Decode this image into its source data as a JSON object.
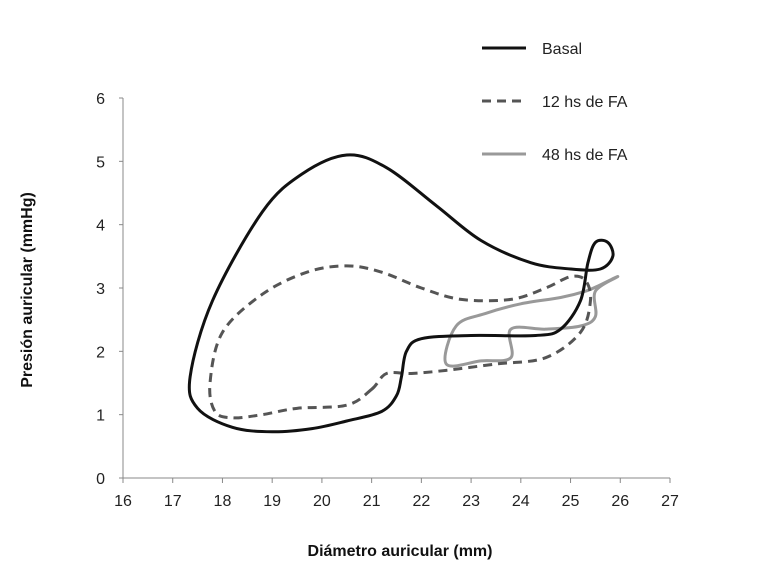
{
  "chart_data": {
    "type": "line",
    "xlabel": "Diámetro auricular (mm)",
    "ylabel": "Presión auricular (mmHg)",
    "xlim": [
      16,
      27
    ],
    "ylim": [
      0,
      6
    ],
    "x_ticks": [
      "16",
      "17",
      "18",
      "19",
      "20",
      "21",
      "22",
      "23",
      "24",
      "25",
      "26",
      "27"
    ],
    "y_ticks": [
      "0",
      "1",
      "2",
      "3",
      "4",
      "5",
      "6"
    ],
    "grid": false,
    "legend_position": "top-right",
    "series": [
      {
        "name": "Basal",
        "color": "#111111",
        "style": "solid",
        "points": [
          [
            21.5,
            1.3
          ],
          [
            21.2,
            1.05
          ],
          [
            20.5,
            0.9
          ],
          [
            19.8,
            0.78
          ],
          [
            19.0,
            0.73
          ],
          [
            18.2,
            0.8
          ],
          [
            17.5,
            1.1
          ],
          [
            17.35,
            1.6
          ],
          [
            17.8,
            2.8
          ],
          [
            18.8,
            4.2
          ],
          [
            19.6,
            4.8
          ],
          [
            20.5,
            5.1
          ],
          [
            21.3,
            4.9
          ],
          [
            22.3,
            4.3
          ],
          [
            23.2,
            3.75
          ],
          [
            24.2,
            3.4
          ],
          [
            25.0,
            3.3
          ],
          [
            25.6,
            3.3
          ],
          [
            25.85,
            3.5
          ],
          [
            25.75,
            3.72
          ],
          [
            25.5,
            3.72
          ],
          [
            25.35,
            3.4
          ],
          [
            25.2,
            2.8
          ],
          [
            24.8,
            2.35
          ],
          [
            24.3,
            2.25
          ],
          [
            23.0,
            2.25
          ],
          [
            22.0,
            2.2
          ],
          [
            21.7,
            2.0
          ],
          [
            21.6,
            1.6
          ],
          [
            21.5,
            1.3
          ]
        ]
      },
      {
        "name": "12 hs de FA",
        "color": "#555555",
        "style": "dashed",
        "points": [
          [
            21.0,
            1.4
          ],
          [
            20.5,
            1.15
          ],
          [
            19.5,
            1.1
          ],
          [
            18.8,
            1.0
          ],
          [
            18.2,
            0.95
          ],
          [
            17.85,
            1.05
          ],
          [
            17.75,
            1.5
          ],
          [
            18.0,
            2.3
          ],
          [
            18.8,
            2.9
          ],
          [
            19.7,
            3.25
          ],
          [
            20.5,
            3.35
          ],
          [
            21.2,
            3.25
          ],
          [
            22.0,
            3.0
          ],
          [
            22.8,
            2.82
          ],
          [
            23.8,
            2.82
          ],
          [
            24.5,
            3.0
          ],
          [
            25.0,
            3.18
          ],
          [
            25.3,
            3.12
          ],
          [
            25.4,
            2.8
          ],
          [
            25.2,
            2.3
          ],
          [
            24.5,
            1.9
          ],
          [
            23.5,
            1.8
          ],
          [
            22.5,
            1.7
          ],
          [
            21.8,
            1.65
          ],
          [
            21.3,
            1.65
          ],
          [
            21.0,
            1.4
          ]
        ]
      },
      {
        "name": "48 hs de FA",
        "color": "#999999",
        "style": "solid",
        "points": [
          [
            22.5,
            1.8
          ],
          [
            22.7,
            2.4
          ],
          [
            23.3,
            2.6
          ],
          [
            24.0,
            2.75
          ],
          [
            24.8,
            2.85
          ],
          [
            25.3,
            2.95
          ],
          [
            25.6,
            3.05
          ],
          [
            25.95,
            3.18
          ],
          [
            25.5,
            2.95
          ],
          [
            25.5,
            2.55
          ],
          [
            25.2,
            2.4
          ],
          [
            24.5,
            2.35
          ],
          [
            23.8,
            2.35
          ],
          [
            23.8,
            1.9
          ],
          [
            23.2,
            1.85
          ],
          [
            22.5,
            1.8
          ]
        ]
      }
    ]
  }
}
